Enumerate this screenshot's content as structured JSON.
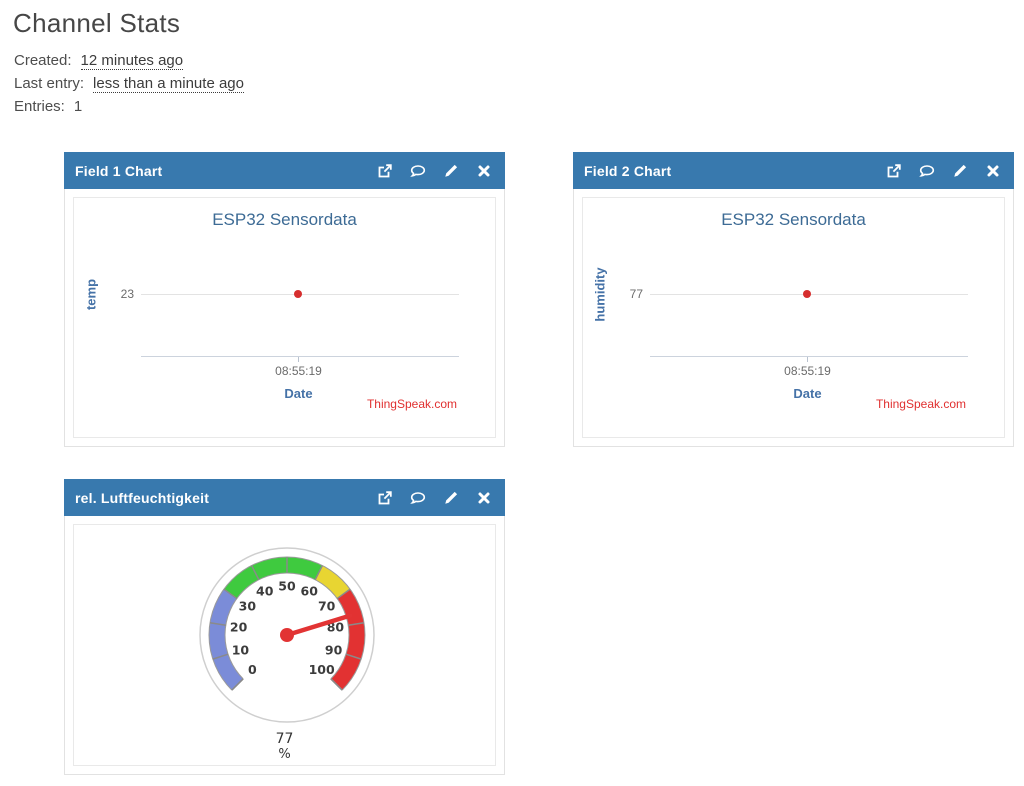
{
  "page": {
    "title": "Channel Stats",
    "created_label": "Created:",
    "created_value": "12 minutes ago",
    "last_entry_label": "Last entry:",
    "last_entry_value": "less than a minute ago",
    "entries_label": "Entries:",
    "entries_value": "1"
  },
  "colors": {
    "panel_header_blue": "#3879ae",
    "chart_title_blue": "#3d6b95",
    "axis_label_blue": "#4572a7",
    "point_red": "#d62e2e",
    "watermark_red": "#e03030",
    "needle_red": "#e23434"
  },
  "panels": [
    {
      "title": "Field 1 Chart",
      "icons": [
        "external-link-icon",
        "comment-icon",
        "edit-icon",
        "close-icon"
      ]
    },
    {
      "title": "Field 2 Chart",
      "icons": [
        "external-link-icon",
        "comment-icon",
        "edit-icon",
        "close-icon"
      ]
    },
    {
      "title": "rel. Luftfeuchtigkeit",
      "icons": [
        "external-link-icon",
        "comment-icon",
        "edit-icon",
        "close-icon"
      ]
    }
  ],
  "chart_data": [
    {
      "type": "line",
      "title": "ESP32 Sensordata",
      "xlabel": "Date",
      "ylabel": "temp",
      "x": [
        "08:55:19"
      ],
      "values": [
        23
      ],
      "grid": true,
      "legend": "none",
      "watermark": "ThingSpeak.com"
    },
    {
      "type": "line",
      "title": "ESP32 Sensordata",
      "xlabel": "Date",
      "ylabel": "humidity",
      "x": [
        "08:55:19"
      ],
      "values": [
        77
      ],
      "grid": true,
      "legend": "none",
      "watermark": "ThingSpeak.com"
    },
    {
      "type": "gauge",
      "title": "rel. Luftfeuchtigkeit",
      "value": 77,
      "unit": "%",
      "min": 0,
      "max": 100,
      "tick_step": 10,
      "tick_labels": [
        0,
        10,
        20,
        30,
        40,
        50,
        60,
        70,
        80,
        90,
        100
      ],
      "segments": [
        {
          "from": 0,
          "to": 30,
          "color": "#7b8cd8"
        },
        {
          "from": 30,
          "to": 60,
          "color": "#3fca3f"
        },
        {
          "from": 60,
          "to": 70,
          "color": "#e8d532"
        },
        {
          "from": 70,
          "to": 100,
          "color": "#e23232"
        }
      ]
    }
  ]
}
